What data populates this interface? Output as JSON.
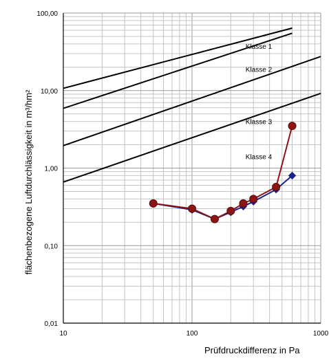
{
  "chart_data": {
    "type": "line",
    "xscale": "log",
    "yscale": "log",
    "xlim": [
      10,
      1000
    ],
    "ylim": [
      0.01,
      100
    ],
    "xlabel": "Prüfdruckdifferenz in Pa",
    "ylabel": "flächenbezogene Luftdurchlässigkeit in m³/hm²",
    "grid": true,
    "x_ticks": [
      {
        "value": 10,
        "label": "10"
      },
      {
        "value": 100,
        "label": "100"
      },
      {
        "value": 1000,
        "label": "1000"
      }
    ],
    "y_ticks": [
      {
        "value": 0.01,
        "label": "0,01"
      },
      {
        "value": 0.1,
        "label": "0,10"
      },
      {
        "value": 1,
        "label": "1,00"
      },
      {
        "value": 10,
        "label": "10,00"
      },
      {
        "value": 100,
        "label": "100,00"
      }
    ],
    "class_lines": [
      {
        "label": "Klasse 1",
        "x": [
          10,
          600
        ],
        "y": [
          10.7,
          64
        ],
        "label_at": [
          330,
          34.5
        ]
      },
      {
        "label": "Klasse 2",
        "x": [
          10,
          600
        ],
        "y": [
          5.9,
          55
        ],
        "label_at": [
          330,
          17.5
        ]
      },
      {
        "label": "Klasse 3",
        "x": [
          10,
          1000
        ],
        "y": [
          1.95,
          27.5
        ],
        "label_at": [
          330,
          3.7
        ]
      },
      {
        "label": "Klasse 4",
        "x": [
          10,
          1000
        ],
        "y": [
          0.66,
          9.2
        ],
        "label_at": [
          330,
          1.3
        ]
      }
    ],
    "series": [
      {
        "color": "#1a1f8c",
        "marker": "diamond",
        "x": [
          50,
          100,
          150,
          200,
          250,
          300,
          450,
          600
        ],
        "y": [
          0.35,
          0.29,
          0.22,
          0.27,
          0.32,
          0.37,
          0.53,
          0.8
        ]
      },
      {
        "color": "#8b1414",
        "marker": "circle",
        "x": [
          50,
          100,
          150,
          200,
          250,
          300,
          450,
          600
        ],
        "y": [
          0.35,
          0.3,
          0.22,
          0.28,
          0.35,
          0.4,
          0.57,
          3.5
        ]
      }
    ]
  }
}
